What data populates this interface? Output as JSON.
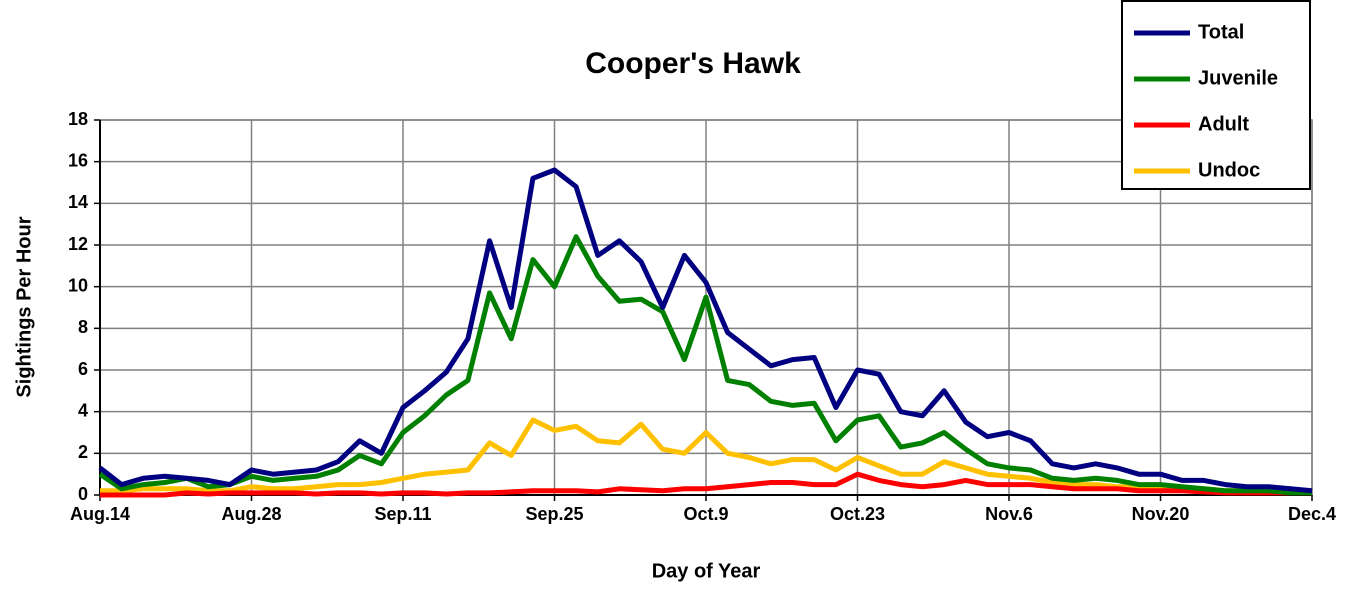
{
  "chart_data": {
    "type": "line",
    "title": "Cooper's Hawk",
    "xlabel": "Day of Year",
    "ylabel": "Sightings Per Hour",
    "categories": [
      "Aug.14",
      null,
      null,
      null,
      null,
      null,
      null,
      "Aug.28",
      null,
      null,
      null,
      null,
      null,
      null,
      "Sep.11",
      null,
      null,
      null,
      null,
      null,
      null,
      "Sep.25",
      null,
      null,
      null,
      null,
      null,
      null,
      "Oct.9",
      null,
      null,
      null,
      null,
      null,
      null,
      "Oct.23",
      null,
      null,
      null,
      null,
      null,
      null,
      "Nov.6",
      null,
      null,
      null,
      null,
      null,
      null,
      "Nov.20",
      null,
      null,
      null,
      null,
      null,
      null,
      "Dec.4"
    ],
    "series": [
      {
        "name": "Total",
        "color": "#000080",
        "values": [
          1.3,
          0.5,
          0.8,
          0.9,
          0.8,
          0.7,
          0.5,
          1.2,
          1.0,
          1.1,
          1.2,
          1.6,
          2.6,
          2.0,
          4.2,
          5.0,
          5.9,
          7.5,
          12.2,
          9.0,
          15.2,
          15.6,
          14.8,
          11.5,
          12.2,
          11.2,
          9.0,
          11.5,
          10.2,
          7.8,
          7.0,
          6.2,
          6.5,
          6.6,
          4.2,
          6.0,
          5.8,
          4.0,
          3.8,
          5.0,
          3.5,
          2.8,
          3.0,
          2.6,
          1.5,
          1.3,
          1.5,
          1.3,
          1.0,
          1.0,
          0.7,
          0.7,
          0.5,
          0.4,
          0.4,
          0.3,
          0.2
        ]
      },
      {
        "name": "Juvenile",
        "color": "#008000",
        "values": [
          1.0,
          0.3,
          0.5,
          0.6,
          0.8,
          0.4,
          0.5,
          0.9,
          0.7,
          0.8,
          0.9,
          1.2,
          1.9,
          1.5,
          3.0,
          3.8,
          4.8,
          5.5,
          9.7,
          7.5,
          11.3,
          10.0,
          12.4,
          10.5,
          9.3,
          9.4,
          8.8,
          6.5,
          9.5,
          5.5,
          5.3,
          4.5,
          4.3,
          4.4,
          2.6,
          3.6,
          3.8,
          2.3,
          2.5,
          3.0,
          2.2,
          1.5,
          1.3,
          1.2,
          0.8,
          0.7,
          0.8,
          0.7,
          0.5,
          0.5,
          0.4,
          0.3,
          0.2,
          0.2,
          0.2,
          0.1,
          0.1
        ]
      },
      {
        "name": "Adult",
        "color": "#ff0000",
        "values": [
          0,
          0,
          0,
          0,
          0.1,
          0.05,
          0.1,
          0.1,
          0.1,
          0.1,
          0.05,
          0.1,
          0.1,
          0.05,
          0.1,
          0.1,
          0.05,
          0.1,
          0.1,
          0.15,
          0.2,
          0.2,
          0.2,
          0.15,
          0.3,
          0.25,
          0.2,
          0.3,
          0.3,
          0.4,
          0.5,
          0.6,
          0.6,
          0.5,
          0.5,
          1.0,
          0.7,
          0.5,
          0.4,
          0.5,
          0.7,
          0.5,
          0.5,
          0.5,
          0.4,
          0.3,
          0.3,
          0.3,
          0.2,
          0.2,
          0.2,
          0.15,
          0.1,
          0.1,
          0.1,
          0.1,
          0.1
        ]
      },
      {
        "name": "Undoc",
        "color": "#ffc000",
        "values": [
          0.2,
          0.2,
          0.3,
          0.3,
          0.3,
          0.2,
          0.2,
          0.4,
          0.3,
          0.3,
          0.4,
          0.5,
          0.5,
          0.6,
          0.8,
          1.0,
          1.1,
          1.2,
          2.5,
          1.9,
          3.6,
          3.1,
          3.3,
          2.6,
          2.5,
          3.4,
          2.2,
          2.0,
          3.0,
          2.0,
          1.8,
          1.5,
          1.7,
          1.7,
          1.2,
          1.8,
          1.4,
          1.0,
          1.0,
          1.6,
          1.3,
          1.0,
          0.9,
          0.8,
          0.6,
          0.5,
          0.5,
          0.4,
          0.4,
          0.4,
          0.3,
          0.3,
          0.2,
          0.2,
          0.2,
          0.2,
          0.1
        ]
      }
    ],
    "ylim": [
      0,
      18
    ],
    "yticks": [
      0,
      2,
      4,
      6,
      8,
      10,
      12,
      14,
      16,
      18
    ],
    "grid": true,
    "legend": "upper right"
  }
}
